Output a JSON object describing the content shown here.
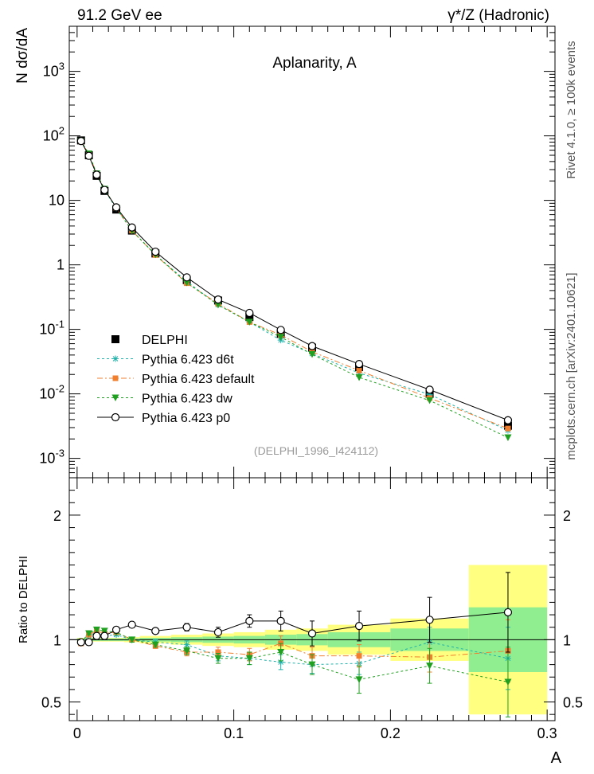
{
  "header": {
    "left": "91.2 GeV ee",
    "right": "γ*/Z (Hadronic)"
  },
  "side_labels": {
    "top": "Rivet 4.1.0, ≥ 100k events",
    "bottom": "mcplots.cern.ch [arXiv:2401.10621]"
  },
  "chart_data": [
    {
      "type": "line",
      "panel": "main",
      "title": "Aplanarity, A",
      "watermark": "(DELPHI_1996_I424112)",
      "xlabel": "A",
      "ylabel": "N  dσ/dA",
      "yscale": "log",
      "ylim": [
        0.0005,
        5000
      ],
      "xlim": [
        -0.005,
        0.305
      ],
      "y_tick_labels": [
        "10^-3",
        "10^-2",
        "10^-1",
        "1",
        "10",
        "10^2",
        "10^3"
      ],
      "x": [
        0.0025,
        0.0075,
        0.0125,
        0.0175,
        0.025,
        0.035,
        0.05,
        0.07,
        0.09,
        0.11,
        0.13,
        0.15,
        0.18,
        0.225,
        0.275
      ],
      "legend_location": "middle-left",
      "series": [
        {
          "name": "DELPHI",
          "color": "#000000",
          "marker": "square",
          "values": [
            85,
            50,
            24,
            14,
            7.2,
            3.4,
            1.5,
            0.58,
            0.28,
            0.155,
            0.085,
            0.052,
            0.026,
            0.01,
            0.0032
          ]
        },
        {
          "name": "Pythia 6.423 d6t",
          "color": "#20b2aa",
          "marker": "star",
          "dash": "3,3",
          "values": [
            82,
            51,
            25,
            14.4,
            7.5,
            3.4,
            1.43,
            0.55,
            0.24,
            0.13,
            0.068,
            0.042,
            0.021,
            0.0098,
            0.0027
          ]
        },
        {
          "name": "Pythia 6.423 default",
          "color": "#f08030",
          "marker": "square-small",
          "dash": "7,3,2,3",
          "values": [
            82,
            52,
            26,
            15,
            7.6,
            3.4,
            1.42,
            0.52,
            0.25,
            0.13,
            0.082,
            0.045,
            0.023,
            0.0086,
            0.0029
          ]
        },
        {
          "name": "Pythia 6.423 dw",
          "color": "#20a020",
          "marker": "triangle-down",
          "dash": "3,3",
          "values": [
            83,
            53,
            26,
            15,
            7.6,
            3.4,
            1.44,
            0.53,
            0.24,
            0.13,
            0.076,
            0.041,
            0.018,
            0.0079,
            0.0021
          ]
        },
        {
          "name": "Pythia 6.423 p0",
          "color": "#000000",
          "marker": "circle-open",
          "values": [
            83,
            49,
            25,
            14.5,
            7.8,
            3.8,
            1.6,
            0.64,
            0.29,
            0.18,
            0.098,
            0.055,
            0.029,
            0.0116,
            0.0039
          ]
        }
      ]
    },
    {
      "type": "line",
      "panel": "ratio",
      "ylabel": "Ratio to DELPHI",
      "xlabel": "A",
      "ylim": [
        0.35,
        2.3
      ],
      "xlim": [
        -0.005,
        0.305
      ],
      "x_tick_labels": [
        "0",
        "0.1",
        "0.2",
        "0.3"
      ],
      "y_tick_labels": [
        "0.5",
        "1",
        "2"
      ],
      "bin_edges": [
        0,
        0.005,
        0.01,
        0.015,
        0.02,
        0.03,
        0.04,
        0.06,
        0.08,
        0.1,
        0.12,
        0.14,
        0.16,
        0.2,
        0.25,
        0.3
      ],
      "stat_band": [
        0.01,
        0.01,
        0.01,
        0.01,
        0.01,
        0.01,
        0.015,
        0.02,
        0.025,
        0.03,
        0.04,
        0.045,
        0.06,
        0.09,
        0.26
      ],
      "total_band": [
        0.015,
        0.015,
        0.015,
        0.015,
        0.015,
        0.02,
        0.03,
        0.04,
        0.05,
        0.06,
        0.08,
        0.09,
        0.12,
        0.17,
        0.6
      ],
      "x": [
        0.0025,
        0.0075,
        0.0125,
        0.0175,
        0.025,
        0.035,
        0.05,
        0.07,
        0.09,
        0.11,
        0.13,
        0.15,
        0.18,
        0.225,
        0.275
      ],
      "series": [
        {
          "name": "Pythia 6.423 d6t",
          "color": "#20b2aa",
          "marker": "star",
          "dash": "3,3",
          "values": [
            0.97,
            1.03,
            1.06,
            1.03,
            1.04,
            1.0,
            0.98,
            0.96,
            0.87,
            0.85,
            0.82,
            0.8,
            0.81,
            0.98,
            0.85
          ],
          "errors": [
            0.01,
            0.01,
            0.01,
            0.01,
            0.01,
            0.02,
            0.02,
            0.03,
            0.04,
            0.05,
            0.06,
            0.07,
            0.09,
            0.12,
            0.25
          ]
        },
        {
          "name": "Pythia 6.423 default",
          "color": "#f08030",
          "marker": "square-small",
          "dash": "7,3,2,3",
          "values": [
            0.97,
            1.04,
            1.07,
            1.05,
            1.06,
            1.0,
            0.95,
            0.9,
            0.9,
            0.88,
            0.97,
            0.87,
            0.87,
            0.86,
            0.91
          ],
          "errors": [
            0.01,
            0.01,
            0.01,
            0.01,
            0.01,
            0.02,
            0.02,
            0.03,
            0.04,
            0.05,
            0.06,
            0.07,
            0.09,
            0.12,
            0.25
          ]
        },
        {
          "name": "Pythia 6.423 dw",
          "color": "#20a020",
          "marker": "triangle-down",
          "dash": "3,3",
          "values": [
            0.98,
            1.05,
            1.08,
            1.07,
            1.06,
            1.0,
            0.96,
            0.91,
            0.85,
            0.85,
            0.9,
            0.8,
            0.68,
            0.79,
            0.66
          ],
          "errors": [
            0.01,
            0.01,
            0.01,
            0.01,
            0.01,
            0.02,
            0.02,
            0.03,
            0.04,
            0.05,
            0.07,
            0.08,
            0.11,
            0.14,
            0.28
          ]
        },
        {
          "name": "Pythia 6.423 p0",
          "color": "#000000",
          "marker": "circle-open",
          "values": [
            0.98,
            0.98,
            1.03,
            1.03,
            1.08,
            1.12,
            1.07,
            1.1,
            1.06,
            1.15,
            1.15,
            1.05,
            1.11,
            1.16,
            1.22
          ],
          "errors": [
            0.01,
            0.01,
            0.01,
            0.01,
            0.01,
            0.02,
            0.02,
            0.03,
            0.04,
            0.05,
            0.08,
            0.1,
            0.12,
            0.18,
            0.32
          ]
        }
      ]
    }
  ]
}
